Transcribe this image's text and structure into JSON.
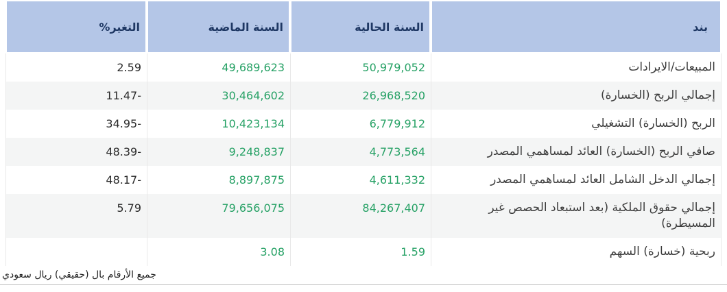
{
  "table": {
    "headers": {
      "item": "بند",
      "current_year": "السنة الحالية",
      "previous_year": "السنة الماضية",
      "change": "التغير%"
    },
    "rows": [
      {
        "item": "المبيعات/الايرادات",
        "current": "50,979,052",
        "previous": "49,689,623",
        "change": "2.59"
      },
      {
        "item": "إجمالي الربح (الخسارة)",
        "current": "26,968,520",
        "previous": "30,464,602",
        "change": "11.47-"
      },
      {
        "item": "الربح (الخسارة) التشغيلي",
        "current": "6,779,912",
        "previous": "10,423,134",
        "change": "34.95-"
      },
      {
        "item": "صافي الربح (الخسارة) العائد لمساهمي المصدر",
        "current": "4,773,564",
        "previous": "9,248,837",
        "change": "48.39-"
      },
      {
        "item": "إجمالي الدخل الشامل العائد لمساهمي المصدر",
        "current": "4,611,332",
        "previous": "8,897,875",
        "change": "48.17-"
      },
      {
        "item": "إجمالي حقوق الملكية (بعد استبعاد الحصص غير المسيطرة)",
        "current": "84,267,407",
        "previous": "79,656,075",
        "change": "5.79"
      },
      {
        "item": "ربحية (خسارة) السهم",
        "current": "1.59",
        "previous": "3.08",
        "change": ""
      }
    ],
    "footnote": "جميع الأرقام بال (حقيقي) ريال سعودي"
  },
  "colors": {
    "header_bg": "#b4c6e7",
    "header_text": "#1f3864",
    "value_green": "#26a165",
    "row_stripe": "#f4f5f5",
    "separator": "#e8e8e8",
    "bottom_rule": "#bdbdbd"
  }
}
